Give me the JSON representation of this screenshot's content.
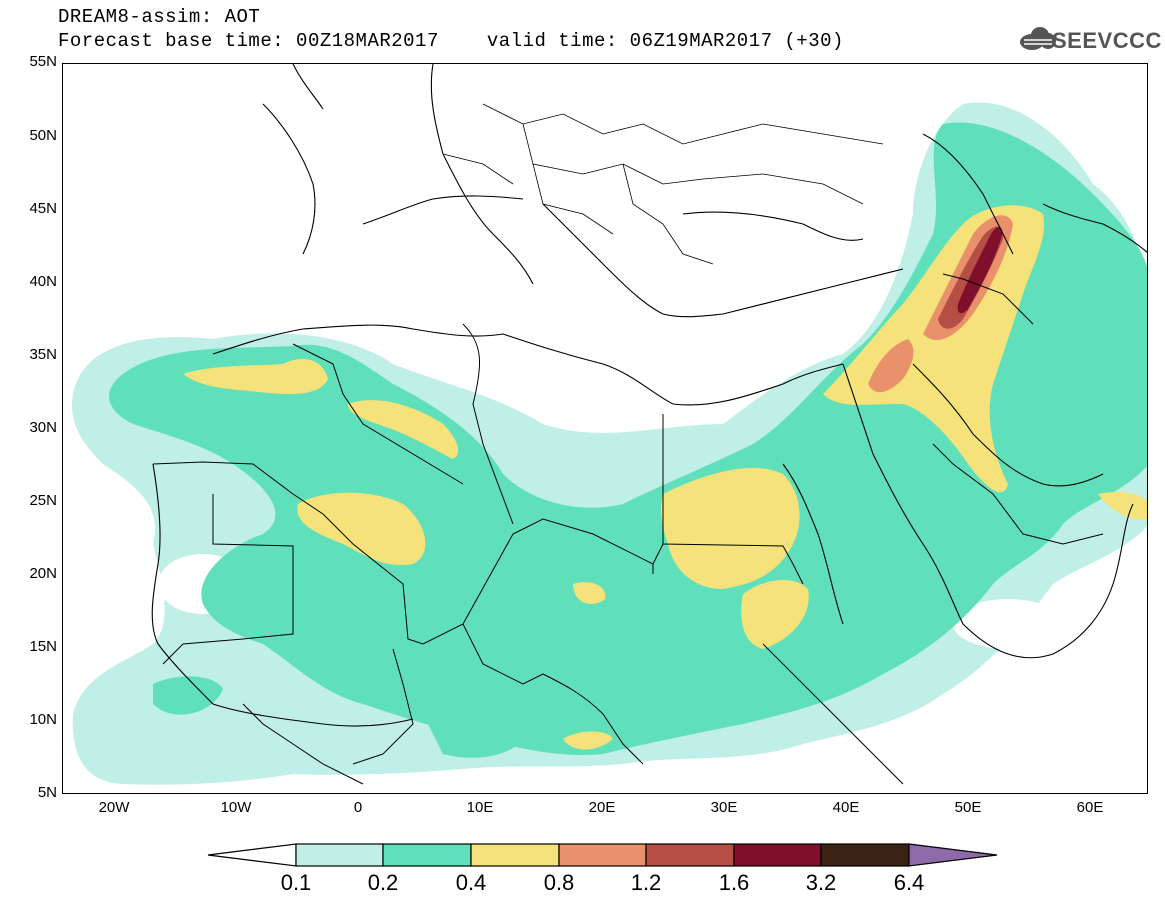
{
  "title_line1": "DREAM8-assim: AOT",
  "title_base": "Forecast base time: 00Z18MAR2017",
  "title_valid": "valid time: 06Z19MAR2017 (+30)",
  "logo_text": "SEEVCCC",
  "y_ticks": [
    "55N",
    "50N",
    "45N",
    "40N",
    "35N",
    "30N",
    "25N",
    "20N",
    "15N",
    "10N",
    "5N"
  ],
  "x_ticks": [
    "20W",
    "10W",
    "0",
    "10E",
    "20E",
    "30E",
    "40E",
    "50E",
    "60E"
  ],
  "colorbar": {
    "labels": [
      "0.1",
      "0.2",
      "0.4",
      "0.8",
      "1.2",
      "1.6",
      "3.2",
      "6.4"
    ],
    "colors": [
      "#bfefe6",
      "#5fe0bb",
      "#f5e27a",
      "#e8916a",
      "#b54e44",
      "#7f0f2b",
      "#3a2314",
      "#8f6aa8"
    ],
    "low_color": "#ffffff"
  },
  "legend_colors": {
    "c01": "#bfefe6",
    "c02": "#5fe0bb",
    "c04": "#f5e27a",
    "c08": "#e8916a",
    "c12": "#b54e44",
    "c16": "#7f0f2b"
  }
}
